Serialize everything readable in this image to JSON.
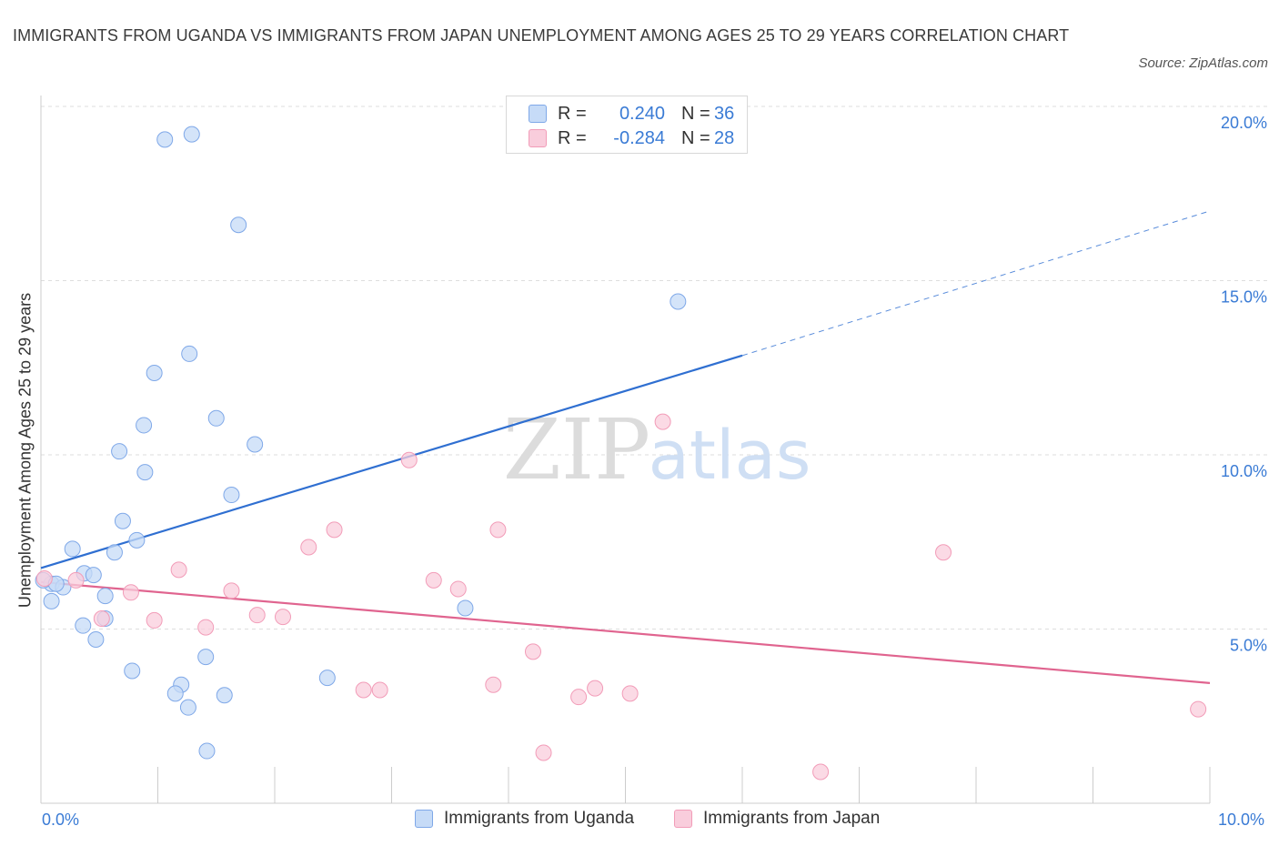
{
  "title": "IMMIGRANTS FROM UGANDA VS IMMIGRANTS FROM JAPAN UNEMPLOYMENT AMONG AGES 25 TO 29 YEARS CORRELATION CHART",
  "source": "Source: ZipAtlas.com",
  "watermark": {
    "zip": "ZIP",
    "atlas": "atlas"
  },
  "legend_top": {
    "rows": [
      {
        "r_label": "R =",
        "r_value": "0.240",
        "n_label": "N =",
        "n_value": "36"
      },
      {
        "r_label": "R =",
        "r_value": "-0.284",
        "n_label": "N =",
        "n_value": "28"
      }
    ]
  },
  "chart_data": {
    "type": "scatter",
    "title": "IMMIGRANTS FROM UGANDA VS IMMIGRANTS FROM JAPAN UNEMPLOYMENT AMONG AGES 25 TO 29 YEARS CORRELATION CHART",
    "xlabel": "",
    "ylabel": "Unemployment Among Ages 25 to 29 years",
    "xlim": [
      0,
      10
    ],
    "ylim": [
      0,
      20
    ],
    "x_tick_labels": [
      "0.0%",
      "10.0%"
    ],
    "y_tick_labels": [
      "5.0%",
      "10.0%",
      "15.0%",
      "20.0%"
    ],
    "y_ticks": [
      5,
      10,
      15,
      20
    ],
    "grid": true,
    "legend_position": "bottom",
    "series": [
      {
        "name": "Immigrants from Uganda",
        "color": "#7fa8e8",
        "fill": "#c6dbf7",
        "line_color": "#2f6fd1",
        "R": 0.24,
        "N": 36,
        "trend": {
          "x_start": 0.0,
          "y_start": 6.75,
          "x_end": 6.0,
          "y_end": 12.85,
          "dash_to_x": 10.0,
          "dash_to_y": 17.0
        },
        "points": [
          [
            1.06,
            19.05
          ],
          [
            1.29,
            19.2
          ],
          [
            1.69,
            16.6
          ],
          [
            5.45,
            14.4
          ],
          [
            1.27,
            12.9
          ],
          [
            0.97,
            12.35
          ],
          [
            0.88,
            10.85
          ],
          [
            1.5,
            11.05
          ],
          [
            0.67,
            10.1
          ],
          [
            1.83,
            10.3
          ],
          [
            0.89,
            9.5
          ],
          [
            1.63,
            8.85
          ],
          [
            0.7,
            8.1
          ],
          [
            0.82,
            7.55
          ],
          [
            0.27,
            7.3
          ],
          [
            0.63,
            7.2
          ],
          [
            0.37,
            6.6
          ],
          [
            0.45,
            6.55
          ],
          [
            0.09,
            6.3
          ],
          [
            0.19,
            6.2
          ],
          [
            0.55,
            5.95
          ],
          [
            0.09,
            5.8
          ],
          [
            0.36,
            5.1
          ],
          [
            0.55,
            5.3
          ],
          [
            0.47,
            4.7
          ],
          [
            1.41,
            4.2
          ],
          [
            0.78,
            3.8
          ],
          [
            2.45,
            3.6
          ],
          [
            1.2,
            3.4
          ],
          [
            1.15,
            3.15
          ],
          [
            1.57,
            3.1
          ],
          [
            1.26,
            2.75
          ],
          [
            1.42,
            1.5
          ],
          [
            3.63,
            5.6
          ],
          [
            0.02,
            6.4
          ],
          [
            0.13,
            6.3
          ]
        ]
      },
      {
        "name": "Immigrants from Japan",
        "color": "#f29cb8",
        "fill": "#f9cddc",
        "line_color": "#e0648f",
        "R": -0.284,
        "N": 28,
        "trend": {
          "x_start": 0.0,
          "y_start": 6.35,
          "x_end": 10.0,
          "y_end": 3.45
        },
        "points": [
          [
            5.32,
            10.95
          ],
          [
            3.15,
            9.85
          ],
          [
            2.51,
            7.85
          ],
          [
            3.91,
            7.85
          ],
          [
            2.29,
            7.35
          ],
          [
            7.72,
            7.2
          ],
          [
            1.18,
            6.7
          ],
          [
            3.36,
            6.4
          ],
          [
            3.57,
            6.15
          ],
          [
            0.77,
            6.05
          ],
          [
            1.63,
            6.1
          ],
          [
            0.3,
            6.4
          ],
          [
            0.52,
            5.3
          ],
          [
            0.97,
            5.25
          ],
          [
            1.85,
            5.4
          ],
          [
            2.07,
            5.35
          ],
          [
            1.41,
            5.05
          ],
          [
            4.21,
            4.35
          ],
          [
            3.87,
            3.4
          ],
          [
            2.76,
            3.25
          ],
          [
            2.9,
            3.25
          ],
          [
            4.74,
            3.3
          ],
          [
            4.6,
            3.05
          ],
          [
            5.04,
            3.15
          ],
          [
            4.3,
            1.45
          ],
          [
            6.67,
            0.9
          ],
          [
            9.9,
            2.7
          ],
          [
            0.03,
            6.45
          ]
        ]
      }
    ]
  }
}
